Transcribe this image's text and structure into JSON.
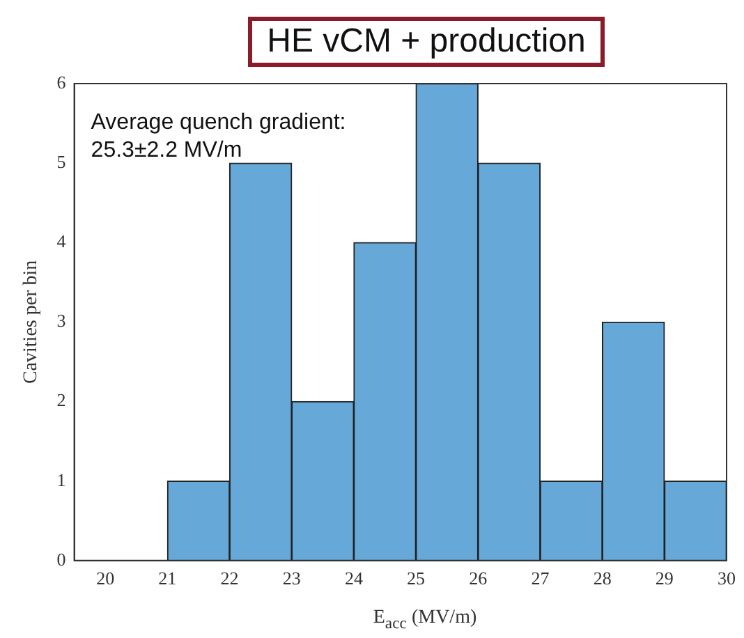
{
  "chart_data": {
    "type": "histogram",
    "title": "HE vCM + production",
    "xlabel": "E$_{acc}$ (MV/m)",
    "ylabel": "Cavities per bin",
    "bins": [
      21,
      22,
      23,
      24,
      25,
      26,
      27,
      28,
      29,
      30
    ],
    "values": [
      1,
      5,
      2,
      4,
      6,
      5,
      1,
      3,
      1
    ],
    "color": "#66a9d9",
    "xlim": [
      19.5,
      30
    ],
    "xticks": [
      20,
      21,
      22,
      23,
      24,
      25,
      26,
      27,
      28,
      29,
      30
    ],
    "ylim": [
      0,
      6
    ],
    "yticks": [
      0,
      1,
      2,
      3,
      4,
      5,
      6
    ],
    "grid": false,
    "legend": false,
    "annotations": [
      "Average quench gradient:\n25.3±2.2 MV/m"
    ]
  }
}
